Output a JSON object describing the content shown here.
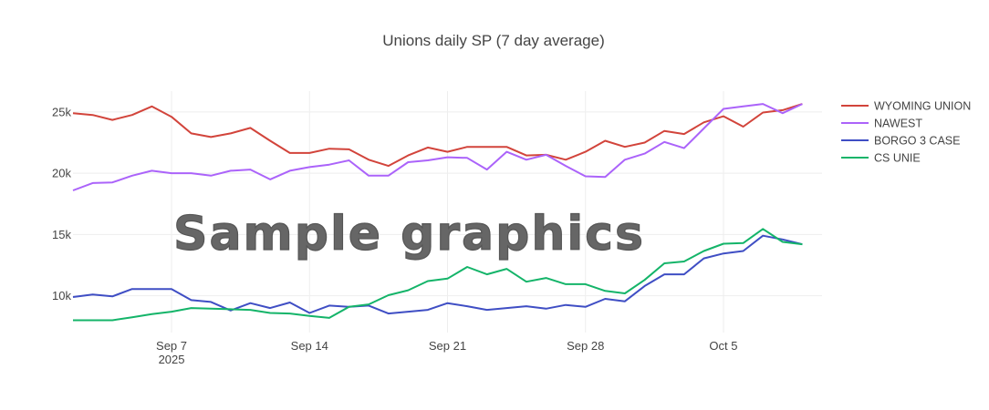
{
  "chart_data": {
    "type": "line",
    "title": "Unions daily SP (7 day average)",
    "xlabel": "",
    "ylabel": "",
    "x": [
      "2025-09-02",
      "2025-09-03",
      "2025-09-04",
      "2025-09-05",
      "2025-09-06",
      "2025-09-07",
      "2025-09-08",
      "2025-09-09",
      "2025-09-10",
      "2025-09-11",
      "2025-09-12",
      "2025-09-13",
      "2025-09-14",
      "2025-09-15",
      "2025-09-16",
      "2025-09-17",
      "2025-09-18",
      "2025-09-19",
      "2025-09-20",
      "2025-09-21",
      "2025-09-22",
      "2025-09-23",
      "2025-09-24",
      "2025-09-25",
      "2025-09-26",
      "2025-09-27",
      "2025-09-28",
      "2025-09-29",
      "2025-09-30",
      "2025-10-01",
      "2025-10-02",
      "2025-10-03",
      "2025-10-04",
      "2025-10-05",
      "2025-10-06",
      "2025-10-07",
      "2025-10-08",
      "2025-10-09",
      "2025-10-10"
    ],
    "x_ticks": [
      {
        "date": "2025-09-07",
        "label": "Sep 7",
        "sublabel": "2025"
      },
      {
        "date": "2025-09-14",
        "label": "Sep 14",
        "sublabel": ""
      },
      {
        "date": "2025-09-21",
        "label": "Sep 21",
        "sublabel": ""
      },
      {
        "date": "2025-09-28",
        "label": "Sep 28",
        "sublabel": ""
      },
      {
        "date": "2025-10-05",
        "label": "Oct 5",
        "sublabel": ""
      }
    ],
    "xlim": [
      "2025-09-02",
      "2025-10-10"
    ],
    "ylim": [
      7000,
      26700
    ],
    "y_ticks": [
      {
        "value": 10000,
        "label": "10k"
      },
      {
        "value": 15000,
        "label": "15k"
      },
      {
        "value": 20000,
        "label": "20k"
      },
      {
        "value": 25000,
        "label": "25k"
      }
    ],
    "grid": true,
    "legend_position": "right",
    "series": [
      {
        "name": "WYOMING UNION",
        "color": "#d2443b",
        "values": [
          24900,
          24750,
          24350,
          24750,
          25450,
          24600,
          23250,
          22950,
          23250,
          23700,
          22650,
          21650,
          21650,
          22000,
          21950,
          21100,
          20600,
          21450,
          22100,
          21750,
          22150,
          22150,
          22150,
          21450,
          21500,
          21100,
          21750,
          22650,
          22150,
          22500,
          23450,
          23200,
          24150,
          24650,
          23800,
          24950,
          25150,
          25650,
          null
        ]
      },
      {
        "name": "NAWEST",
        "color": "#ab63fa",
        "values": [
          18600,
          19200,
          19250,
          19800,
          20200,
          20000,
          20000,
          19800,
          20200,
          20300,
          19500,
          20200,
          20500,
          20700,
          21050,
          19800,
          19800,
          20900,
          21050,
          21300,
          21250,
          20300,
          21750,
          21100,
          21500,
          20600,
          19750,
          19700,
          21100,
          21600,
          22550,
          22050,
          23650,
          25250,
          25450,
          25650,
          24900,
          25650,
          null
        ]
      },
      {
        "name": "BORGO 3 CASE",
        "color": "#3f4ec4",
        "values": [
          9900,
          10100,
          9950,
          10550,
          10550,
          10550,
          9650,
          9500,
          8800,
          9400,
          9000,
          9450,
          8600,
          9200,
          9100,
          9200,
          8550,
          8700,
          8850,
          9400,
          9150,
          8850,
          9000,
          9150,
          8950,
          9250,
          9100,
          9750,
          9550,
          10800,
          11750,
          11750,
          13050,
          13450,
          13650,
          14900,
          14600,
          14200,
          null
        ]
      },
      {
        "name": "CS UNIE",
        "color": "#14b469",
        "values": [
          8000,
          8000,
          8000,
          8250,
          8500,
          8700,
          9000,
          8950,
          8900,
          8850,
          8600,
          8550,
          8350,
          8200,
          9100,
          9300,
          10050,
          10450,
          11200,
          11400,
          12350,
          11750,
          12200,
          11150,
          11450,
          10950,
          10950,
          10400,
          10200,
          11300,
          12650,
          12800,
          13650,
          14250,
          14300,
          15450,
          14400,
          14200,
          null
        ]
      }
    ]
  },
  "watermark": "Sample graphics"
}
